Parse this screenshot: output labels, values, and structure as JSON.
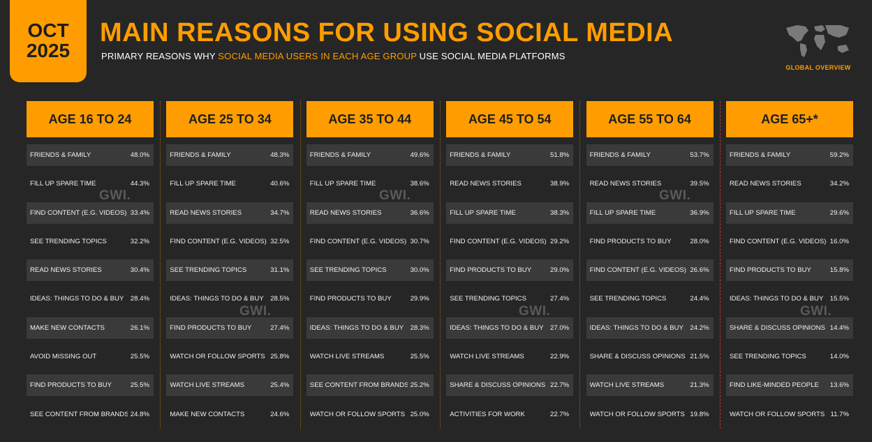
{
  "header": {
    "date_month": "OCT",
    "date_year": "2025",
    "title": "MAIN REASONS FOR USING SOCIAL MEDIA",
    "subtitle_pre": "PRIMARY REASONS WHY ",
    "subtitle_highlight": "SOCIAL MEDIA USERS IN EACH AGE GROUP",
    "subtitle_post": " USE SOCIAL MEDIA PLATFORMS",
    "brand_label": "GLOBAL OVERVIEW",
    "brand_icon": "world-map-icon"
  },
  "watermark": "GWI.",
  "colors": {
    "accent": "#ff9d00",
    "background": "#262626",
    "row_alt": "#3a3a3a"
  },
  "chart_data": {
    "type": "table",
    "unit": "%",
    "columns": [
      {
        "heading": "AGE 16 TO 24",
        "rows": [
          {
            "label": "FRIENDS & FAMILY",
            "value": "48.0%"
          },
          {
            "label": "FILL UP SPARE TIME",
            "value": "44.3%"
          },
          {
            "label": "FIND CONTENT (E.G. VIDEOS)",
            "value": "33.4%"
          },
          {
            "label": "SEE TRENDING TOPICS",
            "value": "32.2%"
          },
          {
            "label": "READ NEWS STORIES",
            "value": "30.4%"
          },
          {
            "label": "IDEAS: THINGS TO DO & BUY",
            "value": "28.4%"
          },
          {
            "label": "MAKE NEW CONTACTS",
            "value": "26.1%"
          },
          {
            "label": "AVOID MISSING OUT",
            "value": "25.5%"
          },
          {
            "label": "FIND PRODUCTS TO BUY",
            "value": "25.5%"
          },
          {
            "label": "SEE CONTENT FROM BRANDS",
            "value": "24.8%"
          }
        ]
      },
      {
        "heading": "AGE 25 TO 34",
        "rows": [
          {
            "label": "FRIENDS & FAMILY",
            "value": "48.3%"
          },
          {
            "label": "FILL UP SPARE TIME",
            "value": "40.6%"
          },
          {
            "label": "READ NEWS STORIES",
            "value": "34.7%"
          },
          {
            "label": "FIND CONTENT (E.G. VIDEOS)",
            "value": "32.5%"
          },
          {
            "label": "SEE TRENDING TOPICS",
            "value": "31.1%"
          },
          {
            "label": "IDEAS: THINGS TO DO & BUY",
            "value": "28.5%"
          },
          {
            "label": "FIND PRODUCTS TO BUY",
            "value": "27.4%"
          },
          {
            "label": "WATCH OR FOLLOW SPORTS",
            "value": "25.8%"
          },
          {
            "label": "WATCH LIVE STREAMS",
            "value": "25.4%"
          },
          {
            "label": "MAKE NEW CONTACTS",
            "value": "24.6%"
          }
        ]
      },
      {
        "heading": "AGE 35 TO 44",
        "rows": [
          {
            "label": "FRIENDS & FAMILY",
            "value": "49.6%"
          },
          {
            "label": "FILL UP SPARE TIME",
            "value": "38.6%"
          },
          {
            "label": "READ NEWS STORIES",
            "value": "36.6%"
          },
          {
            "label": "FIND CONTENT (E.G. VIDEOS)",
            "value": "30.7%"
          },
          {
            "label": "SEE TRENDING TOPICS",
            "value": "30.0%"
          },
          {
            "label": "FIND PRODUCTS TO BUY",
            "value": "29.9%"
          },
          {
            "label": "IDEAS: THINGS TO DO & BUY",
            "value": "28.3%"
          },
          {
            "label": "WATCH LIVE STREAMS",
            "value": "25.5%"
          },
          {
            "label": "SEE CONTENT FROM BRANDS",
            "value": "25.2%"
          },
          {
            "label": "WATCH OR FOLLOW SPORTS",
            "value": "25.0%"
          }
        ]
      },
      {
        "heading": "AGE 45 TO 54",
        "rows": [
          {
            "label": "FRIENDS & FAMILY",
            "value": "51.8%"
          },
          {
            "label": "READ NEWS STORIES",
            "value": "38.9%"
          },
          {
            "label": "FILL UP SPARE TIME",
            "value": "38.3%"
          },
          {
            "label": "FIND CONTENT (E.G. VIDEOS)",
            "value": "29.2%"
          },
          {
            "label": "FIND PRODUCTS TO BUY",
            "value": "29.0%"
          },
          {
            "label": "SEE TRENDING TOPICS",
            "value": "27.4%"
          },
          {
            "label": "IDEAS: THINGS TO DO & BUY",
            "value": "27.0%"
          },
          {
            "label": "WATCH LIVE STREAMS",
            "value": "22.9%"
          },
          {
            "label": "SHARE & DISCUSS OPINIONS",
            "value": "22.7%"
          },
          {
            "label": "ACTIVITIES FOR WORK",
            "value": "22.7%"
          }
        ]
      },
      {
        "heading": "AGE 55 TO 64",
        "rows": [
          {
            "label": "FRIENDS & FAMILY",
            "value": "53.7%"
          },
          {
            "label": "READ NEWS STORIES",
            "value": "39.5%"
          },
          {
            "label": "FILL UP SPARE TIME",
            "value": "36.9%"
          },
          {
            "label": "FIND PRODUCTS TO BUY",
            "value": "28.0%"
          },
          {
            "label": "FIND CONTENT (E.G. VIDEOS)",
            "value": "26.6%"
          },
          {
            "label": "SEE TRENDING TOPICS",
            "value": "24.4%"
          },
          {
            "label": "IDEAS: THINGS TO DO & BUY",
            "value": "24.2%"
          },
          {
            "label": "SHARE & DISCUSS OPINIONS",
            "value": "21.5%"
          },
          {
            "label": "WATCH LIVE STREAMS",
            "value": "21.3%"
          },
          {
            "label": "WATCH OR FOLLOW SPORTS",
            "value": "19.8%"
          }
        ]
      },
      {
        "heading": "AGE 65+*",
        "rows": [
          {
            "label": "FRIENDS & FAMILY",
            "value": "59.2%"
          },
          {
            "label": "READ NEWS STORIES",
            "value": "34.2%"
          },
          {
            "label": "FILL UP SPARE TIME",
            "value": "29.6%"
          },
          {
            "label": "FIND CONTENT (E.G. VIDEOS)",
            "value": "16.0%"
          },
          {
            "label": "FIND PRODUCTS TO BUY",
            "value": "15.8%"
          },
          {
            "label": "IDEAS: THINGS TO DO & BUY",
            "value": "15.5%"
          },
          {
            "label": "SHARE & DISCUSS OPINIONS",
            "value": "14.4%"
          },
          {
            "label": "SEE TRENDING TOPICS",
            "value": "14.0%"
          },
          {
            "label": "FIND LIKE-MINDED PEOPLE",
            "value": "13.6%"
          },
          {
            "label": "WATCH OR FOLLOW SPORTS",
            "value": "11.7%"
          }
        ]
      }
    ]
  }
}
